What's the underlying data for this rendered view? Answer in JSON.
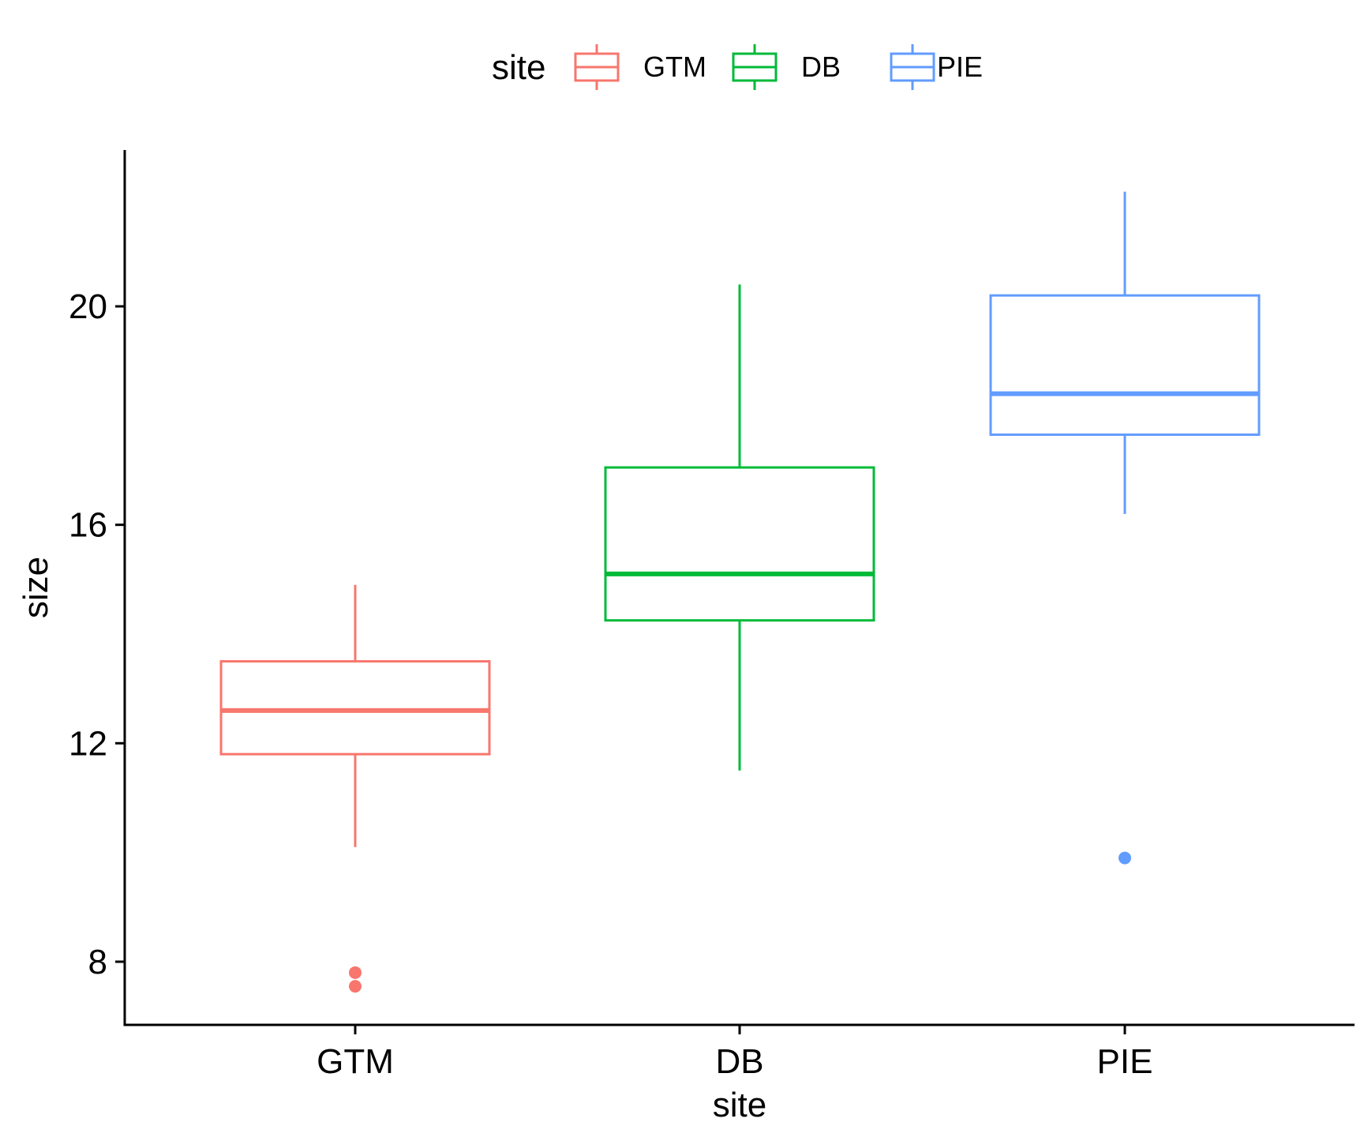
{
  "chart_data": {
    "type": "boxplot",
    "x_axis_title": "site",
    "y_axis_title": "size",
    "categories": [
      "GTM",
      "DB",
      "PIE"
    ],
    "y_ticks": [
      8,
      12,
      16,
      20
    ],
    "y_ticks_labels": [
      "8",
      "12",
      "16",
      "20"
    ],
    "ylim": [
      6.8,
      22.8
    ],
    "grid": false,
    "legend": {
      "title": "site",
      "position": "top",
      "items": [
        {
          "label": "GTM",
          "color": "#F8766D"
        },
        {
          "label": "DB",
          "color": "#00BA38"
        },
        {
          "label": "PIE",
          "color": "#619CFF"
        }
      ]
    },
    "series": [
      {
        "name": "GTM",
        "color": "#F8766D",
        "whisker_low": 10.1,
        "q1": 11.8,
        "median": 12.6,
        "q3": 13.5,
        "whisker_high": 14.9,
        "outliers": [
          7.8,
          7.55
        ]
      },
      {
        "name": "DB",
        "color": "#00BA38",
        "whisker_low": 11.5,
        "q1": 14.25,
        "median": 15.1,
        "q3": 17.05,
        "whisker_high": 20.4,
        "outliers": []
      },
      {
        "name": "PIE",
        "color": "#619CFF",
        "whisker_low": 16.2,
        "q1": 17.65,
        "median": 18.4,
        "q3": 20.2,
        "whisker_high": 22.1,
        "outliers": [
          9.9
        ]
      }
    ]
  }
}
